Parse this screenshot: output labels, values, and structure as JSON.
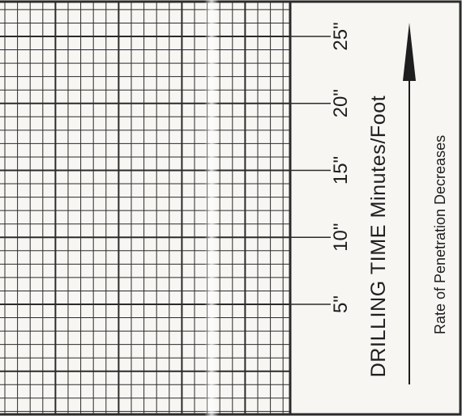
{
  "strip_log": {
    "axis_title": "DRILLING TIME Minutes/Foot",
    "scale_labels": [
      "5\"",
      "10\"",
      "15\"",
      "20\"",
      "25\""
    ],
    "scale_values": [
      5,
      10,
      15,
      20,
      25
    ],
    "arrow_caption": "Rate of Penetration Decreases",
    "arrow_direction": "up",
    "colors": {
      "paper": "#f7f6f3",
      "grid_ink": "#2b2b2b",
      "text_ink": "#1e1e1e"
    }
  }
}
